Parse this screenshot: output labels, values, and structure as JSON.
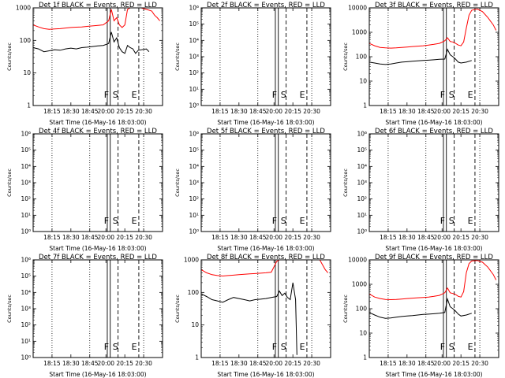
{
  "chart_data": [
    {
      "type": "line",
      "title": "Det 1f BLACK = Events, RED = LLD",
      "xlabel": "Start Time (16-May-16 18:03:00)",
      "ylabel": "Counts/sec",
      "xticks": [
        "18:15",
        "18:30",
        "18:45",
        "20:00",
        "20:15",
        "20:30"
      ],
      "ylog": true,
      "ylim": [
        1,
        1000
      ],
      "markers": {
        "F": "F",
        "S": "S",
        "E": "E"
      },
      "series": [
        {
          "color": "#000000",
          "points": [
            [
              0,
              60
            ],
            [
              2,
              55
            ],
            [
              4,
              45
            ],
            [
              6,
              48
            ],
            [
              8,
              52
            ],
            [
              10,
              50
            ],
            [
              12,
              55
            ],
            [
              14,
              58
            ],
            [
              16,
              55
            ],
            [
              18,
              60
            ],
            [
              20,
              62
            ],
            [
              22,
              65
            ],
            [
              24,
              68
            ],
            [
              26,
              70
            ],
            [
              28,
              80
            ],
            [
              29,
              180
            ],
            [
              30,
              90
            ],
            [
              31,
              120
            ],
            [
              32,
              60
            ],
            [
              33,
              45
            ],
            [
              34,
              40
            ],
            [
              35,
              70
            ],
            [
              36,
              60
            ],
            [
              37,
              55
            ],
            [
              38,
              40
            ],
            [
              39,
              50
            ],
            [
              42,
              55
            ],
            [
              43,
              45
            ]
          ]
        },
        {
          "color": "#ff0000",
          "points": [
            [
              0,
              300
            ],
            [
              2,
              260
            ],
            [
              4,
              230
            ],
            [
              6,
              220
            ],
            [
              8,
              225
            ],
            [
              10,
              230
            ],
            [
              12,
              240
            ],
            [
              14,
              250
            ],
            [
              16,
              255
            ],
            [
              18,
              260
            ],
            [
              20,
              270
            ],
            [
              22,
              280
            ],
            [
              24,
              290
            ],
            [
              26,
              300
            ],
            [
              28,
              400
            ],
            [
              29,
              900
            ],
            [
              30,
              400
            ],
            [
              31,
              500
            ],
            [
              32,
              300
            ],
            [
              33,
              250
            ],
            [
              34,
              300
            ],
            [
              35,
              900
            ],
            [
              36,
              1000
            ],
            [
              40,
              1000
            ],
            [
              42,
              900
            ],
            [
              44,
              800
            ],
            [
              45,
              600
            ],
            [
              46,
              500
            ],
            [
              47,
              400
            ]
          ]
        }
      ]
    },
    {
      "type": "line",
      "title": "Det 2f BLACK = Events, RED = LLD",
      "xlabel": "Start Time (16-May-16 18:03:00)",
      "ylabel": "Counts/sec",
      "xticks": [
        "18:15",
        "18:30",
        "18:45",
        "20:00",
        "20:15",
        "20:30"
      ],
      "ylog": true,
      "ylim": [
        1,
        1000000
      ],
      "markers": {
        "F": "F",
        "S": "S",
        "E": "E"
      },
      "series": []
    },
    {
      "type": "line",
      "title": "Det 3f BLACK = Events, RED = LLD",
      "xlabel": "Start Time (16-May-16 18:03:00)",
      "ylabel": "Counts/sec",
      "xticks": [
        "18:15",
        "18:30",
        "18:45",
        "20:00",
        "20:15",
        "20:30"
      ],
      "ylog": true,
      "ylim": [
        1,
        10000
      ],
      "markers": {
        "F": "F",
        "S": "S",
        "E": "E"
      },
      "series": [
        {
          "color": "#000000",
          "points": [
            [
              0,
              60
            ],
            [
              2,
              55
            ],
            [
              4,
              50
            ],
            [
              6,
              48
            ],
            [
              8,
              50
            ],
            [
              10,
              55
            ],
            [
              12,
              60
            ],
            [
              14,
              62
            ],
            [
              16,
              65
            ],
            [
              18,
              68
            ],
            [
              20,
              70
            ],
            [
              22,
              72
            ],
            [
              24,
              75
            ],
            [
              26,
              78
            ],
            [
              28,
              80
            ],
            [
              29,
              200
            ],
            [
              30,
              120
            ],
            [
              31,
              100
            ],
            [
              32,
              80
            ],
            [
              33,
              60
            ],
            [
              34,
              55
            ],
            [
              36,
              60
            ],
            [
              38,
              70
            ]
          ]
        },
        {
          "color": "#ff0000",
          "points": [
            [
              0,
              350
            ],
            [
              2,
              280
            ],
            [
              4,
              240
            ],
            [
              6,
              230
            ],
            [
              8,
              225
            ],
            [
              10,
              230
            ],
            [
              12,
              240
            ],
            [
              14,
              250
            ],
            [
              16,
              260
            ],
            [
              18,
              270
            ],
            [
              20,
              280
            ],
            [
              22,
              300
            ],
            [
              24,
              320
            ],
            [
              26,
              350
            ],
            [
              28,
              450
            ],
            [
              29,
              600
            ],
            [
              30,
              420
            ],
            [
              31,
              400
            ],
            [
              32,
              350
            ],
            [
              33,
              300
            ],
            [
              34,
              280
            ],
            [
              35,
              400
            ],
            [
              36,
              1500
            ],
            [
              37,
              5000
            ],
            [
              38,
              8000
            ],
            [
              40,
              9000
            ],
            [
              42,
              7000
            ],
            [
              44,
              4000
            ],
            [
              46,
              2000
            ],
            [
              47,
              1200
            ]
          ]
        }
      ]
    },
    {
      "type": "line",
      "title": "Det 4f BLACK = Events, RED = LLD",
      "xlabel": "Start Time (16-May-16 18:03:00)",
      "ylabel": "Counts/sec",
      "xticks": [
        "18:15",
        "18:30",
        "18:45",
        "20:00",
        "20:15",
        "20:30"
      ],
      "ylog": true,
      "ylim": [
        1,
        1000000
      ],
      "markers": {
        "F": "F",
        "S": "S",
        "E": "E"
      },
      "series": []
    },
    {
      "type": "line",
      "title": "Det 5f BLACK = Events, RED = LLD",
      "xlabel": "Start Time (16-May-16 18:03:00)",
      "ylabel": "Counts/sec",
      "xticks": [
        "18:15",
        "18:30",
        "18:45",
        "20:00",
        "20:15",
        "20:30"
      ],
      "ylog": true,
      "ylim": [
        1,
        1000000
      ],
      "markers": {
        "F": "F",
        "S": "S",
        "E": "E"
      },
      "series": []
    },
    {
      "type": "line",
      "title": "Det 6f BLACK = Events, RED = LLD",
      "xlabel": "Start Time (16-May-16 18:03:00)",
      "ylabel": "Counts/sec",
      "xticks": [
        "18:15",
        "18:30",
        "18:45",
        "20:00",
        "20:15",
        "20:30"
      ],
      "ylog": true,
      "ylim": [
        1,
        1000000
      ],
      "markers": {
        "F": "F",
        "S": "S",
        "E": "E"
      },
      "series": []
    },
    {
      "type": "line",
      "title": "Det 7f BLACK = Events, RED = LLD",
      "xlabel": "Start Time (16-May-16 18:03:00)",
      "ylabel": "Counts/sec",
      "xticks": [
        "18:15",
        "18:30",
        "18:45",
        "20:00",
        "20:15",
        "20:30"
      ],
      "ylog": true,
      "ylim": [
        1,
        1000000
      ],
      "markers": {
        "F": "F",
        "S": "S",
        "E": "E"
      },
      "series": []
    },
    {
      "type": "line",
      "title": "Det 8f BLACK = Events, RED = LLD",
      "xlabel": "Start Time (16-May-16 18:03:00)",
      "ylabel": "Counts/sec",
      "xticks": [
        "18:15",
        "18:30",
        "18:45",
        "20:00",
        "20:15",
        "20:30"
      ],
      "ylog": true,
      "ylim": [
        1,
        1000
      ],
      "markers": {
        "F": "F",
        "S": "S",
        "E": "E"
      },
      "series": [
        {
          "color": "#000000",
          "points": [
            [
              0,
              90
            ],
            [
              2,
              75
            ],
            [
              4,
              60
            ],
            [
              6,
              55
            ],
            [
              8,
              50
            ],
            [
              10,
              60
            ],
            [
              12,
              70
            ],
            [
              14,
              65
            ],
            [
              16,
              60
            ],
            [
              18,
              55
            ],
            [
              20,
              60
            ],
            [
              22,
              62
            ],
            [
              24,
              65
            ],
            [
              26,
              70
            ],
            [
              28,
              75
            ],
            [
              29,
              110
            ],
            [
              30,
              80
            ],
            [
              31,
              95
            ],
            [
              32,
              70
            ],
            [
              33,
              60
            ],
            [
              34,
              200
            ],
            [
              35,
              60
            ],
            [
              35.5,
              1.2
            ]
          ]
        },
        {
          "color": "#ff0000",
          "points": [
            [
              0,
              500
            ],
            [
              2,
              400
            ],
            [
              4,
              350
            ],
            [
              6,
              330
            ],
            [
              8,
              320
            ],
            [
              10,
              330
            ],
            [
              12,
              340
            ],
            [
              14,
              350
            ],
            [
              16,
              360
            ],
            [
              18,
              370
            ],
            [
              20,
              380
            ],
            [
              22,
              390
            ],
            [
              24,
              400
            ],
            [
              26,
              420
            ],
            [
              28,
              900
            ],
            [
              29,
              1000
            ],
            [
              33,
              1000
            ],
            [
              35,
              1000
            ],
            [
              40,
              1000
            ],
            [
              44,
              1000
            ],
            [
              45,
              700
            ],
            [
              46,
              500
            ],
            [
              47,
              400
            ]
          ]
        }
      ]
    },
    {
      "type": "line",
      "title": "Det 9f BLACK = Events, RED = LLD",
      "xlabel": "Start Time (16-May-16 18:03:00)",
      "ylabel": "Counts/sec",
      "xticks": [
        "18:15",
        "18:30",
        "18:45",
        "20:00",
        "20:15",
        "20:30"
      ],
      "ylog": true,
      "ylim": [
        1,
        10000
      ],
      "markers": {
        "F": "F",
        "S": "S",
        "E": "E"
      },
      "series": [
        {
          "color": "#000000",
          "points": [
            [
              0,
              70
            ],
            [
              2,
              55
            ],
            [
              4,
              45
            ],
            [
              6,
              40
            ],
            [
              8,
              42
            ],
            [
              10,
              45
            ],
            [
              12,
              48
            ],
            [
              14,
              50
            ],
            [
              16,
              52
            ],
            [
              18,
              55
            ],
            [
              20,
              58
            ],
            [
              22,
              60
            ],
            [
              24,
              62
            ],
            [
              26,
              65
            ],
            [
              28,
              70
            ],
            [
              29,
              250
            ],
            [
              30,
              120
            ],
            [
              31,
              100
            ],
            [
              32,
              80
            ],
            [
              33,
              60
            ],
            [
              34,
              50
            ],
            [
              36,
              55
            ],
            [
              38,
              65
            ]
          ]
        },
        {
          "color": "#ff0000",
          "points": [
            [
              0,
              400
            ],
            [
              2,
              300
            ],
            [
              4,
              260
            ],
            [
              6,
              240
            ],
            [
              8,
              235
            ],
            [
              10,
              240
            ],
            [
              12,
              250
            ],
            [
              14,
              260
            ],
            [
              16,
              270
            ],
            [
              18,
              280
            ],
            [
              20,
              290
            ],
            [
              22,
              300
            ],
            [
              24,
              320
            ],
            [
              26,
              350
            ],
            [
              28,
              450
            ],
            [
              29,
              700
            ],
            [
              30,
              450
            ],
            [
              31,
              420
            ],
            [
              32,
              380
            ],
            [
              33,
              320
            ],
            [
              34,
              300
            ],
            [
              35,
              500
            ],
            [
              36,
              3000
            ],
            [
              37,
              7000
            ],
            [
              38,
              9000
            ],
            [
              40,
              9500
            ],
            [
              42,
              8000
            ],
            [
              44,
              5000
            ],
            [
              46,
              2500
            ],
            [
              47,
              1500
            ]
          ]
        }
      ]
    }
  ]
}
